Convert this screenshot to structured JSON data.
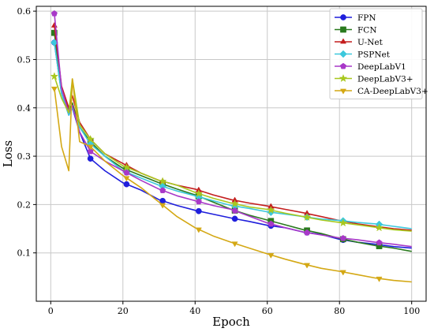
{
  "chart_data": {
    "type": "line",
    "title": "",
    "xlabel": "Epoch",
    "ylabel": "Loss",
    "xlim": [
      -4,
      104
    ],
    "ylim": [
      0.0,
      0.61
    ],
    "xticks": [
      0,
      20,
      40,
      60,
      80,
      100
    ],
    "yticks": [
      0.1,
      0.2,
      0.3,
      0.4,
      0.5,
      0.6
    ],
    "grid": true,
    "legend_position": "top-right",
    "x": [
      1,
      3,
      5,
      6,
      8,
      11,
      15,
      20,
      25,
      30,
      35,
      40,
      45,
      50,
      55,
      60,
      65,
      70,
      75,
      80,
      85,
      90,
      95,
      100
    ],
    "series": [
      {
        "name": "FPN",
        "color": "#1f1fdc",
        "marker": "circle",
        "values": [
          0.535,
          0.43,
          0.385,
          0.4,
          0.35,
          0.295,
          0.27,
          0.245,
          0.23,
          0.21,
          0.198,
          0.188,
          0.18,
          0.172,
          0.165,
          0.157,
          0.152,
          0.143,
          0.138,
          0.128,
          0.122,
          0.118,
          0.113,
          0.11
        ]
      },
      {
        "name": "FCN",
        "color": "#2a7a1e",
        "marker": "square",
        "values": [
          0.555,
          0.44,
          0.395,
          0.41,
          0.36,
          0.33,
          0.3,
          0.275,
          0.26,
          0.245,
          0.232,
          0.22,
          0.205,
          0.19,
          0.178,
          0.168,
          0.158,
          0.148,
          0.14,
          0.13,
          0.122,
          0.115,
          0.11,
          0.103
        ]
      },
      {
        "name": "U-Net",
        "color": "#c41e1e",
        "marker": "triangle-up",
        "values": [
          0.57,
          0.445,
          0.4,
          0.425,
          0.37,
          0.335,
          0.305,
          0.285,
          0.265,
          0.25,
          0.24,
          0.232,
          0.22,
          0.21,
          0.203,
          0.197,
          0.19,
          0.183,
          0.175,
          0.167,
          0.16,
          0.155,
          0.15,
          0.147
        ]
      },
      {
        "name": "PSPNet",
        "color": "#3cc8dc",
        "marker": "diamond",
        "values": [
          0.535,
          0.43,
          0.385,
          0.4,
          0.36,
          0.325,
          0.3,
          0.27,
          0.255,
          0.24,
          0.228,
          0.218,
          0.208,
          0.198,
          0.192,
          0.185,
          0.18,
          0.175,
          0.17,
          0.167,
          0.163,
          0.16,
          0.155,
          0.15
        ]
      },
      {
        "name": "DeepLabV1",
        "color": "#a838c8",
        "marker": "pentagon",
        "values": [
          0.595,
          0.44,
          0.39,
          0.405,
          0.35,
          0.31,
          0.29,
          0.27,
          0.25,
          0.232,
          0.218,
          0.208,
          0.198,
          0.19,
          0.176,
          0.162,
          0.152,
          0.143,
          0.137,
          0.131,
          0.127,
          0.122,
          0.118,
          0.113
        ]
      },
      {
        "name": "DeepLabV3+",
        "color": "#a8c81e",
        "marker": "star",
        "values": [
          0.465,
          0.42,
          0.39,
          0.46,
          0.365,
          0.335,
          0.305,
          0.28,
          0.265,
          0.25,
          0.24,
          0.225,
          0.213,
          0.203,
          0.195,
          0.19,
          0.182,
          0.175,
          0.168,
          0.163,
          0.158,
          0.153,
          0.148,
          0.145
        ]
      },
      {
        "name": "CA-DeepLabV3+",
        "color": "#d4a814",
        "marker": "triangle-down",
        "values": [
          0.44,
          0.32,
          0.27,
          0.46,
          0.33,
          0.32,
          0.29,
          0.26,
          0.235,
          0.205,
          0.175,
          0.152,
          0.135,
          0.122,
          0.11,
          0.098,
          0.087,
          0.077,
          0.068,
          0.062,
          0.055,
          0.048,
          0.043,
          0.04
        ]
      }
    ]
  }
}
